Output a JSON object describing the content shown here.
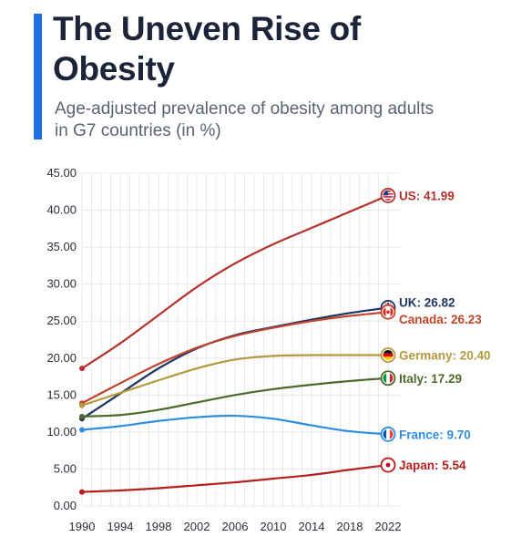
{
  "header": {
    "title": "The Uneven Rise of Obesity",
    "subtitle": "Age-adjusted prevalence of obesity among adults in G7 countries (in %)"
  },
  "colors": {
    "accent": "#1f6fe0",
    "title": "#1b2438",
    "subtitle": "#5a6273",
    "grid": "#e6e8ec",
    "US": "#b3322b",
    "UK": "#1f3563",
    "Canada": "#c0442c",
    "Germany": "#b39a3c",
    "Italy": "#4e6b2b",
    "France": "#2f8de0",
    "Japan": "#b3201e"
  },
  "chart_data": {
    "type": "line",
    "title": "",
    "xlabel": "",
    "ylabel": "",
    "xlim": [
      1990,
      2022
    ],
    "ylim": [
      0,
      45
    ],
    "x_ticks": [
      "1990",
      "1994",
      "1998",
      "2002",
      "2006",
      "2010",
      "2014",
      "2018",
      "2022"
    ],
    "y_ticks": [
      "0.00",
      "5.00",
      "10.00",
      "15.00",
      "20.00",
      "25.00",
      "30.00",
      "35.00",
      "40.00",
      "45.00"
    ],
    "grid": true,
    "x": [
      1990,
      1994,
      1998,
      2002,
      2006,
      2010,
      2014,
      2018,
      2022
    ],
    "series": [
      {
        "name": "US",
        "label": "US: 41.99",
        "icon": "us-flag-icon",
        "values": [
          18.6,
          22.0,
          25.8,
          29.6,
          32.8,
          35.4,
          37.6,
          39.8,
          41.99
        ]
      },
      {
        "name": "UK",
        "label": "UK: 26.82",
        "icon": "uk-flag-icon",
        "values": [
          11.8,
          15.2,
          18.6,
          21.3,
          23.1,
          24.2,
          25.2,
          26.1,
          26.82
        ]
      },
      {
        "name": "Canada",
        "label": "Canada: 26.23",
        "icon": "canada-flag-icon",
        "values": [
          13.9,
          16.6,
          19.2,
          21.4,
          23.0,
          24.1,
          25.0,
          25.7,
          26.23
        ]
      },
      {
        "name": "Germany",
        "label": "Germany: 20.40",
        "icon": "germany-flag-icon",
        "values": [
          13.6,
          15.3,
          17.0,
          18.6,
          19.8,
          20.3,
          20.4,
          20.4,
          20.4
        ]
      },
      {
        "name": "Italy",
        "label": "Italy: 17.29",
        "icon": "italy-flag-icon",
        "values": [
          12.1,
          12.3,
          13.0,
          14.0,
          15.0,
          15.8,
          16.4,
          16.9,
          17.29
        ]
      },
      {
        "name": "France",
        "label": "France: 9.70",
        "icon": "france-flag-icon",
        "values": [
          10.3,
          10.8,
          11.5,
          12.0,
          12.2,
          11.8,
          10.9,
          10.1,
          9.7
        ]
      },
      {
        "name": "Japan",
        "label": "Japan: 5.54",
        "icon": "japan-flag-icon",
        "values": [
          1.9,
          2.1,
          2.4,
          2.8,
          3.2,
          3.7,
          4.2,
          4.9,
          5.54
        ]
      }
    ]
  }
}
